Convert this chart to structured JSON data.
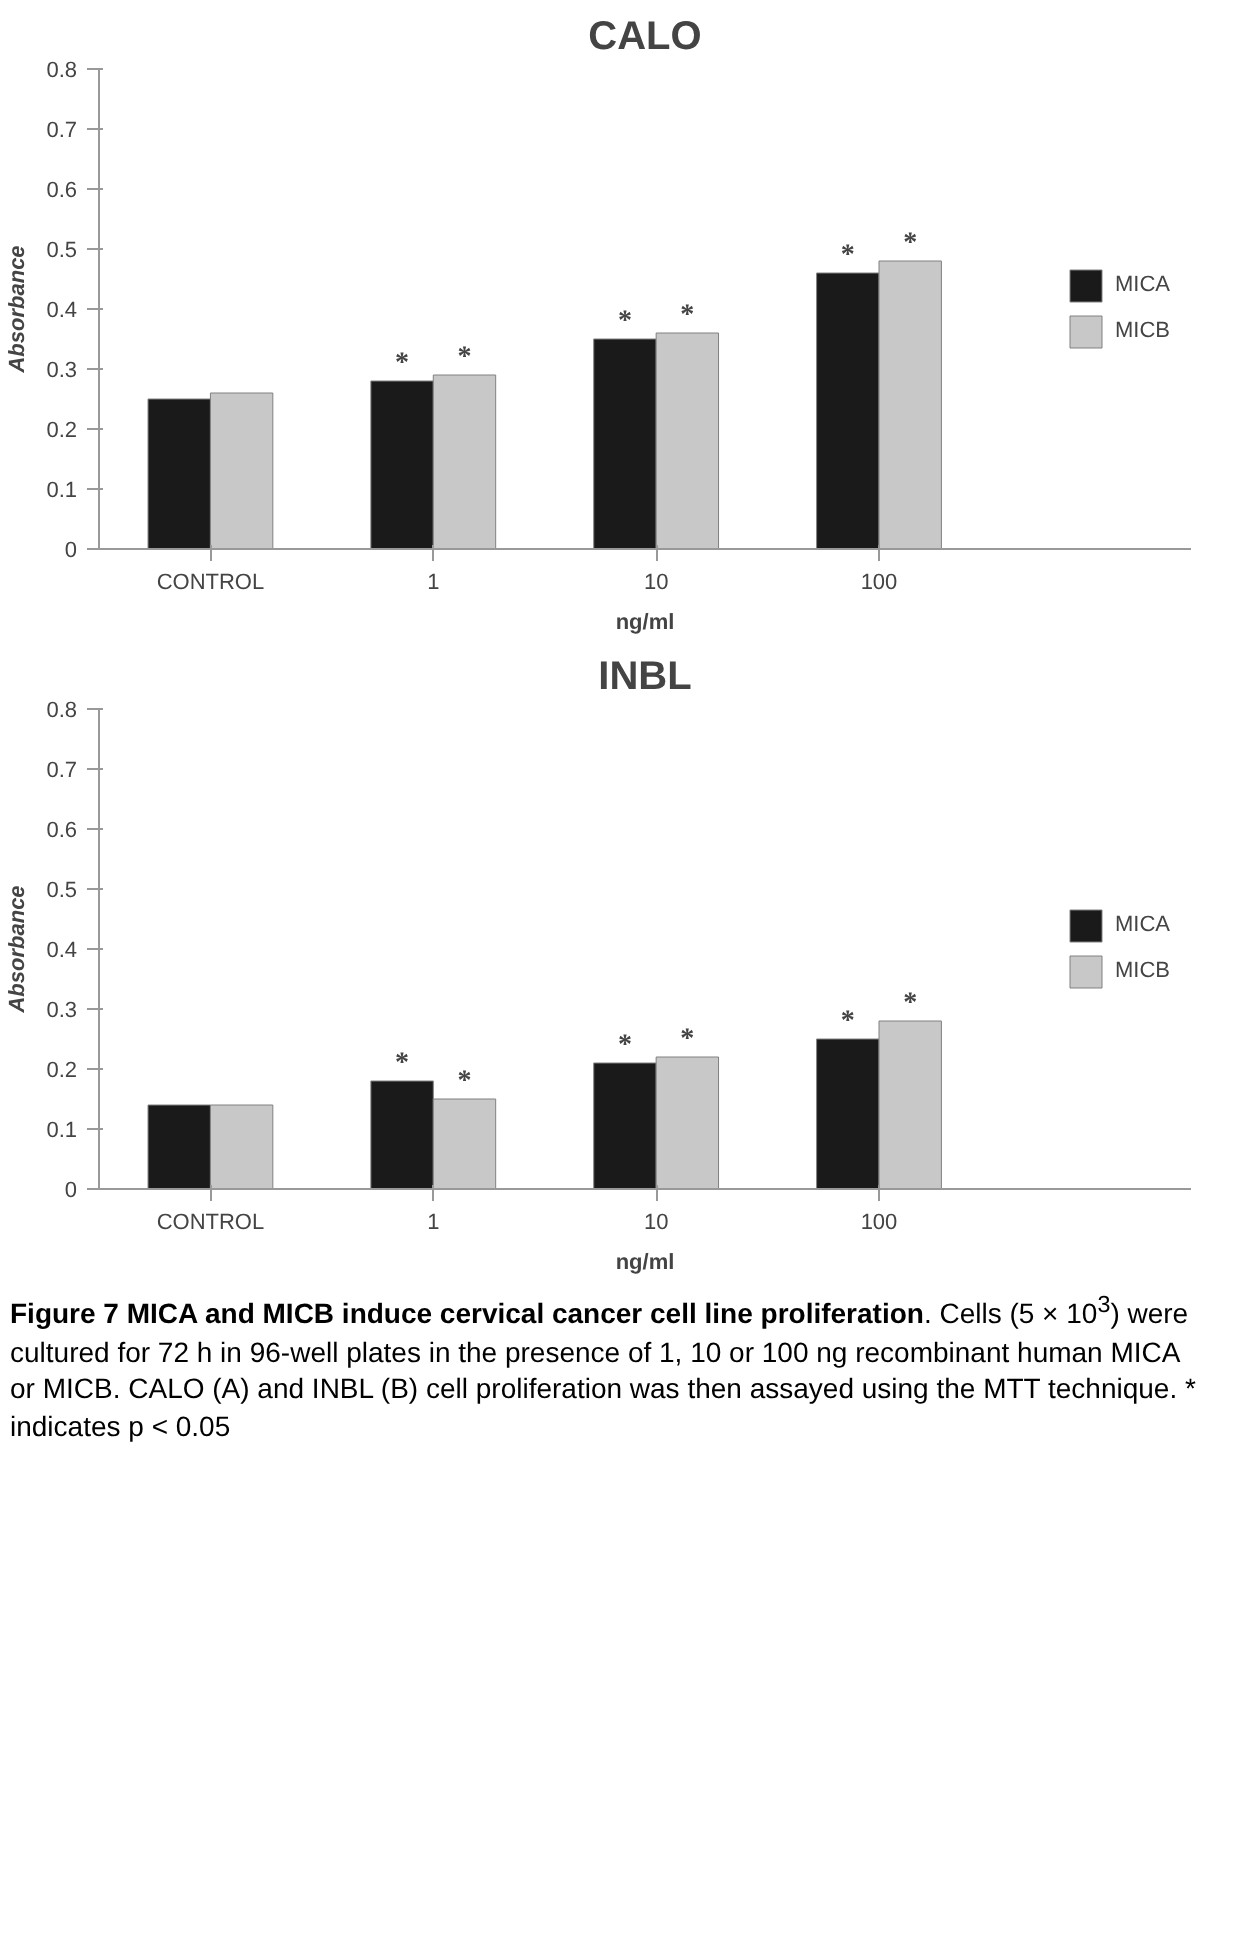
{
  "chart_data": [
    {
      "type": "bar",
      "title": "CALO",
      "xlabel": "ng/ml",
      "ylabel": "Absorbance",
      "categories": [
        "CONTROL",
        "1",
        "10",
        "100"
      ],
      "series": [
        {
          "name": "MICA",
          "color": "#1a1a1a",
          "values": [
            0.25,
            0.28,
            0.35,
            0.46
          ],
          "value_labels": [
            null,
            "*",
            "*",
            "*"
          ]
        },
        {
          "name": "MICB",
          "color": "#c8c8c8",
          "values": [
            0.26,
            0.29,
            0.36,
            0.48
          ],
          "value_labels": [
            null,
            "*",
            "*",
            "*"
          ]
        }
      ],
      "ylim": [
        0,
        0.8
      ],
      "yticks": [
        0,
        {
          "value": 0.1,
          "label": "0.1"
        },
        {
          "value": 0.2,
          "label": "0.2"
        },
        {
          "value": 0.3,
          "label": "0.3"
        },
        {
          "value": 0.4,
          "label": "0.4"
        },
        {
          "value": 0.5,
          "label": "0.5"
        },
        {
          "value": 0.6,
          "label": "0.6"
        },
        {
          "value": 0.7,
          "label": "0.7"
        },
        {
          "value": 0.8,
          "label": "0.8"
        }
      ],
      "grid": false,
      "legend": "right"
    },
    {
      "type": "bar",
      "title": "INBL",
      "xlabel": "ng/ml",
      "ylabel": "Absorbance",
      "categories": [
        "CONTROL",
        "1",
        "10",
        "100"
      ],
      "series": [
        {
          "name": "MICA",
          "color": "#1a1a1a",
          "values": [
            0.14,
            0.18,
            0.21,
            0.25
          ],
          "value_labels": [
            null,
            "*",
            "*",
            "*"
          ]
        },
        {
          "name": "MICB",
          "color": "#c8c8c8",
          "values": [
            0.14,
            0.15,
            0.22,
            0.28
          ],
          "value_labels": [
            null,
            "*",
            "*",
            "*"
          ]
        }
      ],
      "ylim": [
        0,
        0.8
      ],
      "yticks": [
        0,
        {
          "value": 0.1,
          "label": "0.1"
        },
        {
          "value": 0.2,
          "label": "0.2"
        },
        {
          "value": 0.3,
          "label": "0.3"
        },
        {
          "value": 0.4,
          "label": "0.4"
        },
        {
          "value": 0.5,
          "label": "0.5"
        },
        {
          "value": 0.6,
          "label": "0.6"
        },
        {
          "value": 0.7,
          "label": "0.7"
        },
        {
          "value": 0.8,
          "label": "0.8"
        }
      ],
      "grid": false,
      "legend": "right",
      "annotations": [
        "Figure 7 MICA and MICB induce cervical cancer cell line proliferation. Cells (5 × 10$^{3}$) were cultured for 72 h in 96-well plates in the presence of 1, 10 or 100 ng recombinant human MICA or MICB. CALO (A) and INBL (B) cell proliferation was then assayed using the MTT technique. * indicates p < 0.05"
      ]
    }
  ]
}
